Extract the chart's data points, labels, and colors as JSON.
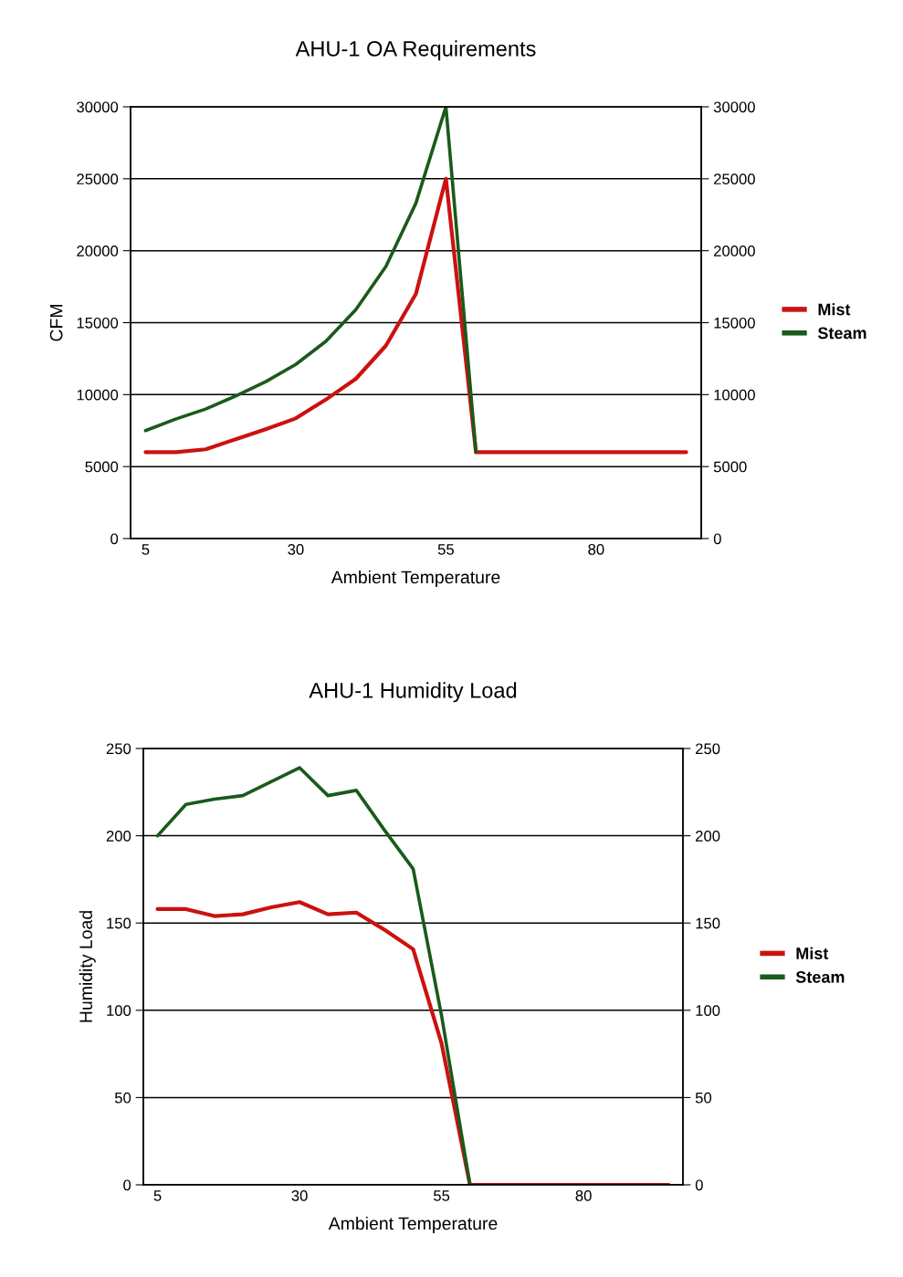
{
  "chart_data": [
    {
      "type": "line",
      "title": "AHU-1 OA Requirements",
      "xlabel": "Ambient Temperature",
      "ylabel": "CFM",
      "categories": [
        "5",
        null,
        null,
        null,
        null,
        "30",
        null,
        null,
        null,
        null,
        "55",
        null,
        null,
        null,
        null,
        "80",
        null,
        null,
        null
      ],
      "series": [
        {
          "name": "Mist",
          "color": "#cc1111",
          "values": [
            6000,
            6000,
            6200,
            6900,
            7600,
            8350,
            9650,
            11100,
            13400,
            17000,
            25000,
            6000,
            6000,
            6000,
            6000,
            6000,
            6000,
            6000,
            6000
          ]
        },
        {
          "name": "Steam",
          "color": "#1a5a1a",
          "values": [
            7500,
            8300,
            9000,
            9900,
            10900,
            12100,
            13700,
            15900,
            18900,
            23300,
            30000,
            6000,
            null,
            null,
            null,
            null,
            null,
            null,
            null
          ]
        }
      ],
      "ylim": [
        0,
        30000
      ],
      "yticks": [
        0,
        5000,
        10000,
        15000,
        20000,
        25000,
        30000
      ],
      "y2lim": [
        0,
        30000
      ],
      "y2ticks": [
        0,
        5000,
        10000,
        15000,
        20000,
        25000,
        30000
      ],
      "grid": "y",
      "legend": "right",
      "marker": "none",
      "line_style": "solid"
    },
    {
      "type": "line",
      "title": "AHU-1 Humidity Load",
      "xlabel": "Ambient Temperature",
      "ylabel": "Humidity Load",
      "categories": [
        "5",
        null,
        null,
        null,
        null,
        "30",
        null,
        null,
        null,
        null,
        "55",
        null,
        null,
        null,
        null,
        "80",
        null,
        null,
        null
      ],
      "series": [
        {
          "name": "Mist",
          "color": "#cc1111",
          "values": [
            158,
            158,
            154,
            155,
            159,
            162,
            155,
            156,
            146,
            135,
            81,
            0,
            0,
            0,
            0,
            0,
            0,
            0,
            0
          ]
        },
        {
          "name": "Steam",
          "color": "#1a5a1a",
          "values": [
            200,
            218,
            221,
            223,
            231,
            239,
            223,
            226,
            203,
            181,
            97,
            0,
            null,
            null,
            null,
            null,
            null,
            null,
            null
          ]
        }
      ],
      "ylim": [
        0,
        250
      ],
      "yticks": [
        0,
        50,
        100,
        150,
        200,
        250
      ],
      "y2lim": [
        0,
        250
      ],
      "y2ticks": [
        0,
        50,
        100,
        150,
        200,
        250
      ],
      "grid": "y",
      "legend": "right",
      "marker": "none",
      "line_style": "solid"
    }
  ]
}
